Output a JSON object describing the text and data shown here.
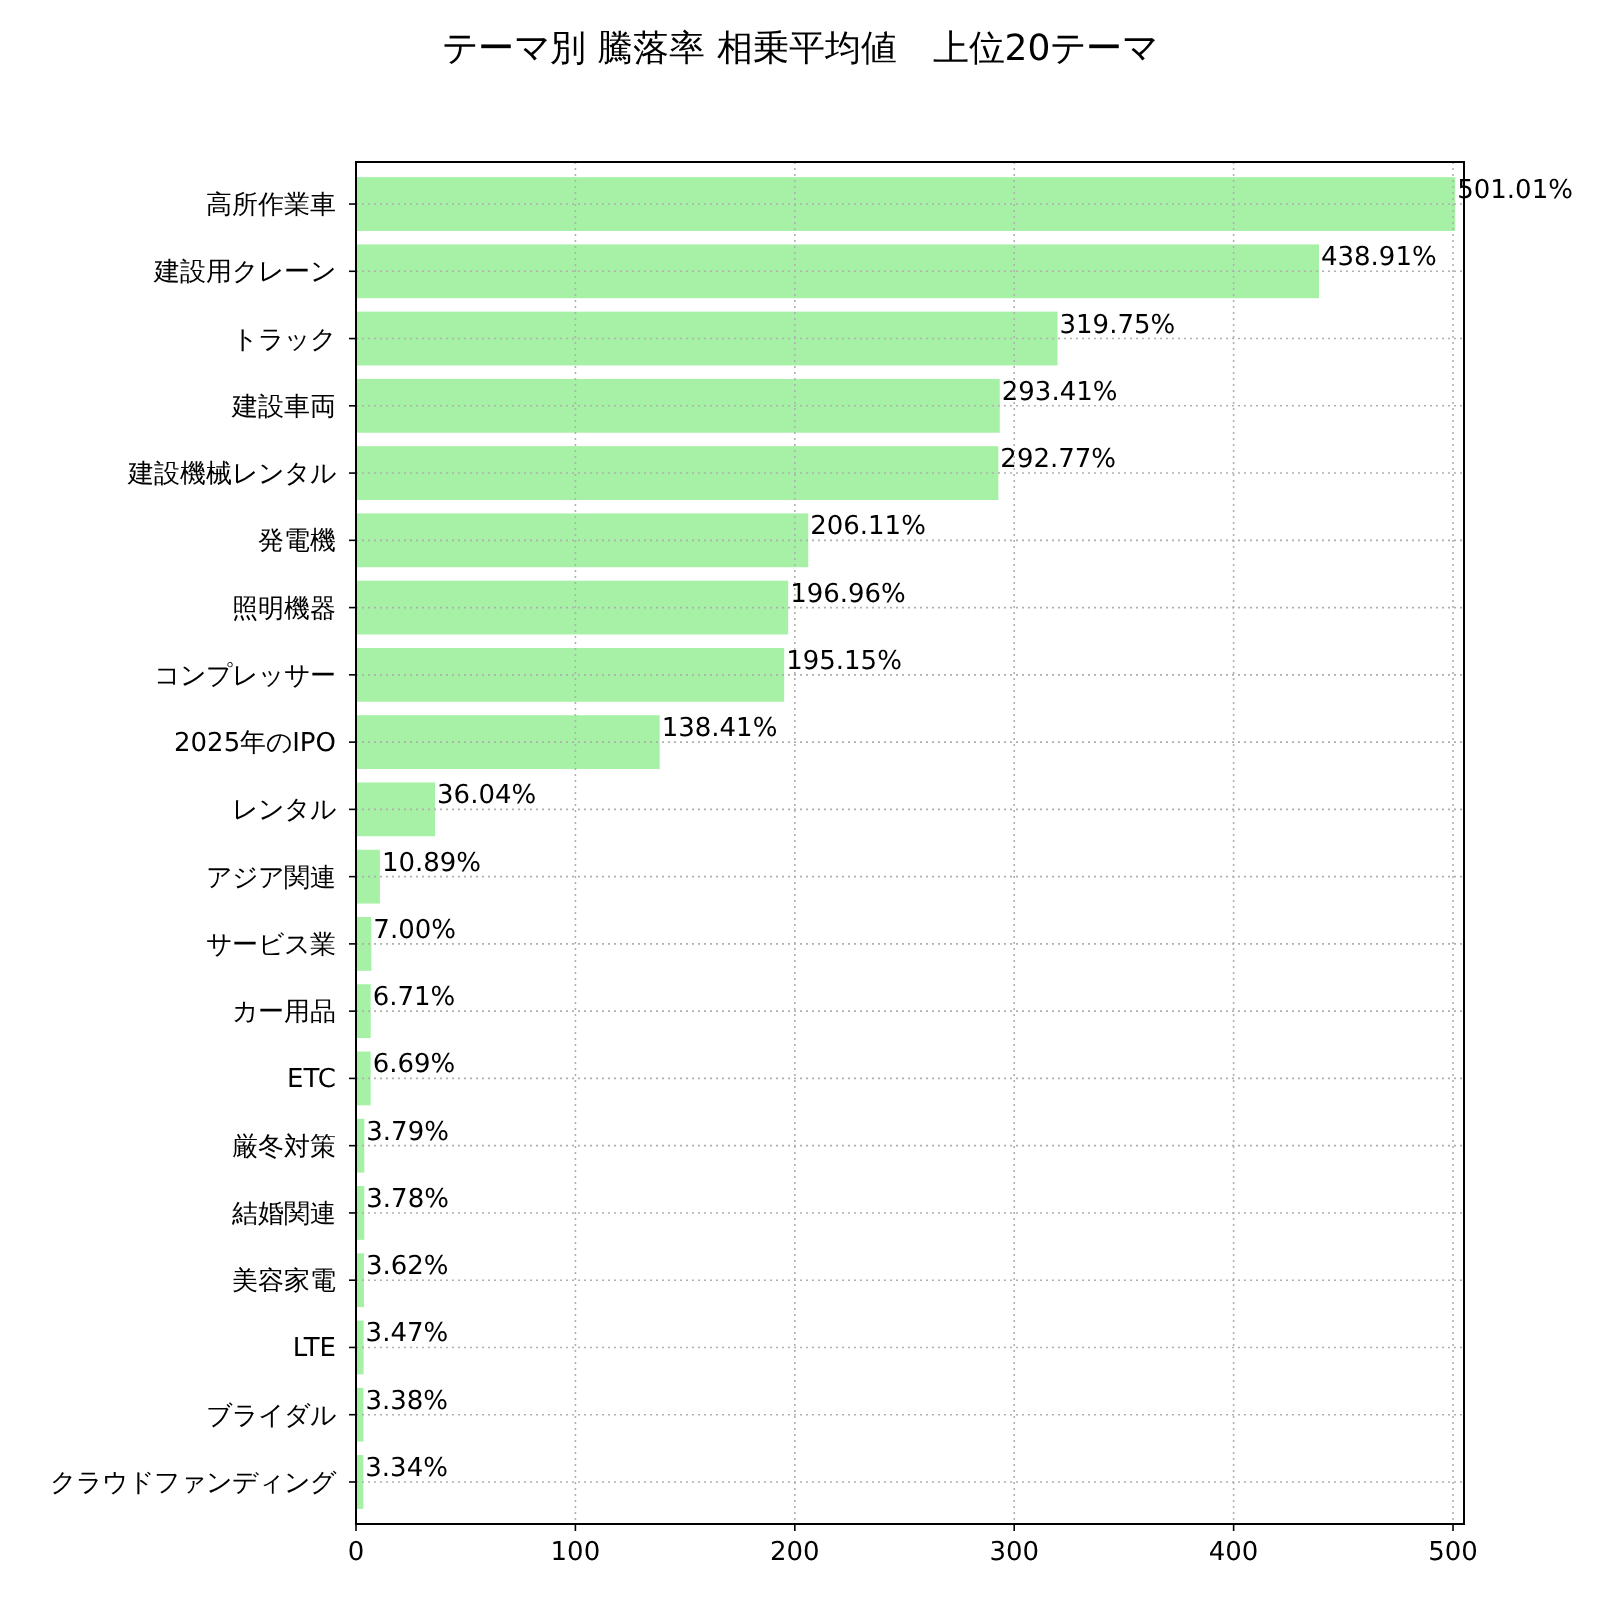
{
  "chart_data": {
    "type": "bar",
    "orientation": "horizontal",
    "title": "テーマ別 騰落率 相乗平均値　上位20テーマ",
    "categories": [
      "高所作業車",
      "建設用クレーン",
      "トラック",
      "建設車両",
      "建設機械レンタル",
      "発電機",
      "照明機器",
      "コンプレッサー",
      "2025年のIPO",
      "レンタル",
      "アジア関連",
      "サービス業",
      "カー用品",
      "ETC",
      "厳冬対策",
      "結婚関連",
      "美容家電",
      "LTE",
      "ブライダル",
      "クラウドファンディング"
    ],
    "values": [
      501.01,
      438.91,
      319.75,
      293.41,
      292.77,
      206.11,
      196.96,
      195.15,
      138.41,
      36.04,
      10.89,
      7.0,
      6.71,
      6.69,
      3.79,
      3.78,
      3.62,
      3.47,
      3.38,
      3.34
    ],
    "value_labels": [
      "501.01%",
      "438.91%",
      "319.75%",
      "293.41%",
      "292.77%",
      "206.11%",
      "196.96%",
      "195.15%",
      "138.41%",
      "36.04%",
      "10.89%",
      "7.00%",
      "6.71%",
      "6.69%",
      "3.79%",
      "3.78%",
      "3.62%",
      "3.47%",
      "3.38%",
      "3.34%"
    ],
    "color": "#a6f1a6",
    "xlim": [
      0,
      505
    ],
    "xticks": [
      0,
      100,
      200,
      300,
      400,
      500
    ],
    "grid": true
  }
}
